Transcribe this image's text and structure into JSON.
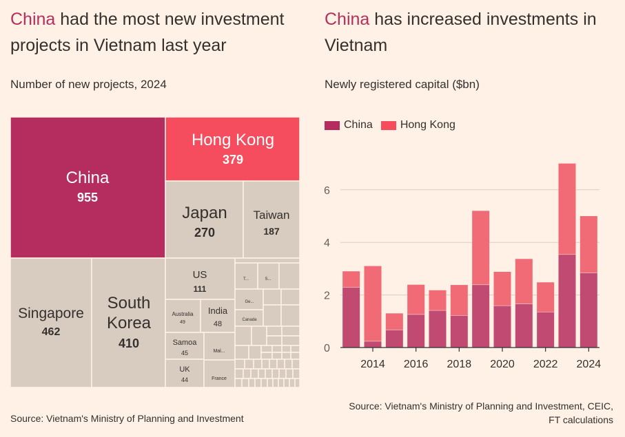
{
  "left": {
    "title_highlight": "China",
    "title_rest_line1": " had the most new investment",
    "title_line2": "projects in Vietnam last year",
    "subtitle": "Number of new projects, 2024",
    "source": "Source: Vietnam's Ministry of Planning and Investment"
  },
  "right": {
    "title_highlight": "China",
    "title_rest_line1": " has increased investments in",
    "title_line2": "Vietnam",
    "subtitle": "Newly registered capital ($bn)",
    "source_line1": "Source: Vietnam's Ministry of Planning and Investment, CEIC,",
    "source_line2": "FT calculations"
  },
  "colors": {
    "china": "#b52d5e",
    "hong_kong": "#f54c5e",
    "other": "#d8cbbf",
    "china_bar": "#c14a72",
    "hk_bar": "#f06b75"
  },
  "chart_data": [
    {
      "type": "treemap",
      "title": "China had the most new investment projects in Vietnam last year",
      "subtitle": "Number of new projects, 2024",
      "items": [
        {
          "label": "China",
          "value": "955"
        },
        {
          "label": "Hong Kong",
          "value": "379"
        },
        {
          "label": "Japan",
          "value": "270"
        },
        {
          "label": "Taiwan",
          "value": "187"
        },
        {
          "label": "Singapore",
          "value": "462"
        },
        {
          "label": "South",
          "label2": "Korea",
          "value": "410"
        },
        {
          "label": "US",
          "value": "111"
        },
        {
          "label": "Australia",
          "value": "49"
        },
        {
          "label": "India",
          "value": "48"
        },
        {
          "label": "Samoa",
          "value": "45"
        },
        {
          "label": "UK",
          "value": "44"
        },
        {
          "label": "Mal...",
          "value": ""
        },
        {
          "label": "France",
          "value": ""
        },
        {
          "label": "T...",
          "value": ""
        },
        {
          "label": "S...",
          "value": ""
        },
        {
          "label": "Ge...",
          "value": ""
        },
        {
          "label": "Canada",
          "value": ""
        }
      ]
    },
    {
      "type": "bar",
      "stacked": true,
      "title": "China has increased investments in Vietnam",
      "subtitle": "Newly registered capital ($bn)",
      "x": [
        2013,
        2014,
        2015,
        2016,
        2017,
        2018,
        2019,
        2020,
        2021,
        2022,
        2023,
        2024
      ],
      "x_tick_labels": [
        "2014",
        "2016",
        "2018",
        "2020",
        "2022",
        "2024"
      ],
      "y_tick_labels": [
        "0",
        "2",
        "4",
        "6"
      ],
      "ylim": [
        0,
        7.5
      ],
      "series": [
        {
          "name": "China",
          "values": [
            2.3,
            0.25,
            0.68,
            1.27,
            1.42,
            1.23,
            2.4,
            1.6,
            1.67,
            1.36,
            3.55,
            2.85
          ]
        },
        {
          "name": "Hong Kong",
          "values": [
            0.6,
            2.85,
            0.62,
            1.12,
            0.76,
            1.15,
            2.8,
            1.28,
            1.7,
            1.12,
            3.45,
            2.15
          ]
        }
      ]
    }
  ]
}
